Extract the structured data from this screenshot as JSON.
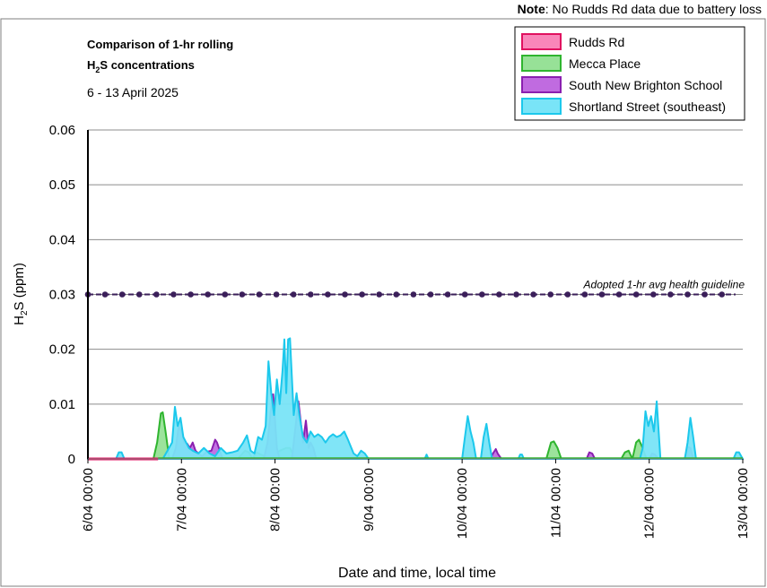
{
  "note": {
    "label": "Note",
    "text": ": No Rudds Rd data due to battery loss"
  },
  "chart_data": {
    "type": "area",
    "title_line1": "Comparison of 1-hr rolling",
    "title_line2_main": "H",
    "title_line2_sub": "2",
    "title_line2_rest": "S concentrations",
    "subtitle": "6 - 13 April 2025",
    "xlabel": "Date and time, local time",
    "ylabel_main": "H",
    "ylabel_sub": "2",
    "ylabel_rest": "S (ppm)",
    "ylim": [
      0,
      0.06
    ],
    "yticks": [
      0,
      0.01,
      0.02,
      0.03,
      0.04,
      0.05,
      0.06
    ],
    "ytick_labels": [
      "0",
      "0.01",
      "0.02",
      "0.03",
      "0.04",
      "0.05",
      "0.06"
    ],
    "xlim": [
      0,
      7
    ],
    "xticks": [
      0,
      1,
      2,
      3,
      4,
      5,
      6,
      7
    ],
    "xtick_labels": [
      "6/04 00:00",
      "7/04 00:00",
      "8/04 00:00",
      "9/04 00:00",
      "10/04 00:00",
      "11/04 00:00",
      "12/04 00:00",
      "13/04 00:00"
    ],
    "grid": true,
    "legend_position": "top-right",
    "guideline": {
      "label": "Adopted 1-hr avg health guideline",
      "value": 0.03,
      "color": "#3b1f5a"
    },
    "series": [
      {
        "name": "Rudds Rd",
        "fill": "#f986b9",
        "stroke": "#e0115f",
        "x": [
          0,
          0.5,
          0.75
        ],
        "y": [
          0,
          0,
          0
        ]
      },
      {
        "name": "Mecca Place",
        "fill": "#97e197",
        "stroke": "#2fb52f",
        "x": [
          0,
          0.7,
          0.74,
          0.78,
          0.8,
          0.83,
          0.87,
          1.0,
          1.3,
          1.5,
          1.6,
          1.68,
          1.72,
          1.76,
          1.8,
          1.95,
          2.05,
          2.12,
          2.16,
          2.2,
          2.3,
          3.0,
          4.9,
          4.95,
          4.98,
          5.02,
          5.06,
          5.7,
          5.74,
          5.78,
          5.82,
          5.86,
          5.89,
          5.93,
          5.97,
          7.0
        ],
        "y": [
          0,
          0,
          0.003,
          0.0083,
          0.0085,
          0.005,
          0,
          0,
          0,
          0,
          0,
          0.0015,
          0.0012,
          0,
          0.0012,
          0,
          0.0015,
          0.002,
          0.002,
          0.0005,
          0,
          0,
          0,
          0.003,
          0.0032,
          0.002,
          0,
          0,
          0.0012,
          0.0015,
          0,
          0.003,
          0.0035,
          0.002,
          0,
          0
        ]
      },
      {
        "name": "South New Brighton School",
        "fill": "#c06be0",
        "stroke": "#8a1fb0",
        "x": [
          0,
          0.9,
          0.94,
          0.97,
          1.0,
          1.03,
          1.06,
          1.09,
          1.12,
          1.15,
          1.18,
          1.22,
          1.27,
          1.32,
          1.36,
          1.38,
          1.41,
          1.44,
          1.5,
          1.88,
          1.92,
          1.95,
          1.98,
          2.0,
          2.02,
          2.05,
          2.1,
          2.18,
          2.22,
          2.25,
          2.28,
          2.3,
          2.33,
          2.36,
          2.38,
          2.41,
          2.44,
          2.47,
          2.5,
          2.55,
          3.0,
          4.3,
          4.33,
          4.36,
          4.38,
          4.42,
          5.33,
          5.36,
          5.39,
          5.42,
          6.0,
          6.03,
          6.06,
          6.1,
          6.38,
          6.41,
          6.44,
          6.47,
          7.0
        ],
        "y": [
          0,
          0,
          0.002,
          0.006,
          0.005,
          0.003,
          0.0028,
          0.002,
          0.003,
          0.0015,
          0.001,
          0.0005,
          0.0013,
          0.0015,
          0.0035,
          0.003,
          0.0015,
          0,
          0,
          0,
          0.003,
          0.008,
          0.0118,
          0.007,
          0.002,
          0,
          0,
          0,
          0.006,
          0.0105,
          0.006,
          0.003,
          0.007,
          0.002,
          0.003,
          0.002,
          0,
          0,
          0,
          0,
          0,
          0,
          0.001,
          0.0018,
          0.001,
          0,
          0,
          0.0012,
          0.001,
          0,
          0,
          0.001,
          0.0008,
          0,
          0,
          0.0022,
          0.002,
          0,
          0
        ],
        "extra": []
      },
      {
        "name": "Shortland Street (southeast)",
        "fill": "#79e4f7",
        "stroke": "#1cc8ec",
        "x": [
          0,
          0.3,
          0.33,
          0.36,
          0.39,
          0.8,
          0.85,
          0.9,
          0.93,
          0.96,
          0.99,
          1.02,
          1.05,
          1.08,
          1.12,
          1.18,
          1.24,
          1.3,
          1.36,
          1.42,
          1.48,
          1.54,
          1.6,
          1.66,
          1.7,
          1.74,
          1.78,
          1.82,
          1.86,
          1.9,
          1.93,
          1.96,
          1.99,
          2.02,
          2.05,
          2.08,
          2.1,
          2.12,
          2.14,
          2.16,
          2.18,
          2.2,
          2.23,
          2.26,
          2.3,
          2.34,
          2.38,
          2.42,
          2.46,
          2.5,
          2.54,
          2.58,
          2.62,
          2.66,
          2.7,
          2.74,
          2.78,
          2.84,
          2.88,
          2.92,
          2.96,
          3.0,
          3.6,
          3.62,
          3.64,
          4.0,
          4.03,
          4.06,
          4.09,
          4.12,
          4.15,
          4.2,
          4.23,
          4.26,
          4.29,
          4.32,
          4.6,
          4.62,
          4.64,
          4.66,
          5.9,
          5.93,
          5.96,
          5.99,
          6.02,
          6.05,
          6.08,
          6.12,
          6.38,
          6.41,
          6.44,
          6.47,
          6.5,
          6.9,
          6.93,
          6.96,
          7.0
        ],
        "y": [
          0,
          0,
          0.0012,
          0.0012,
          0,
          0,
          0.0015,
          0.003,
          0.0095,
          0.006,
          0.0075,
          0.004,
          0.003,
          0.002,
          0.0015,
          0.001,
          0.002,
          0.001,
          0.0005,
          0.002,
          0.001,
          0.0012,
          0.0015,
          0.003,
          0.0043,
          0.0015,
          0.001,
          0.004,
          0.0035,
          0.006,
          0.0178,
          0.012,
          0.008,
          0.0145,
          0.01,
          0.016,
          0.0218,
          0.012,
          0.0218,
          0.022,
          0.015,
          0.008,
          0.012,
          0.008,
          0.004,
          0.003,
          0.005,
          0.004,
          0.0045,
          0.004,
          0.003,
          0.004,
          0.0045,
          0.004,
          0.0043,
          0.005,
          0.0035,
          0.001,
          0.0005,
          0.0015,
          0.001,
          0,
          0,
          0.0008,
          0,
          0,
          0.004,
          0.0078,
          0.005,
          0.003,
          0,
          0,
          0.004,
          0.0064,
          0.003,
          0,
          0,
          0.0008,
          0.0008,
          0,
          0,
          0.002,
          0.0087,
          0.006,
          0.0078,
          0.005,
          0.0105,
          0,
          0,
          0.003,
          0.0075,
          0.004,
          0,
          0,
          0.0012,
          0.0012,
          0
        ]
      }
    ]
  }
}
